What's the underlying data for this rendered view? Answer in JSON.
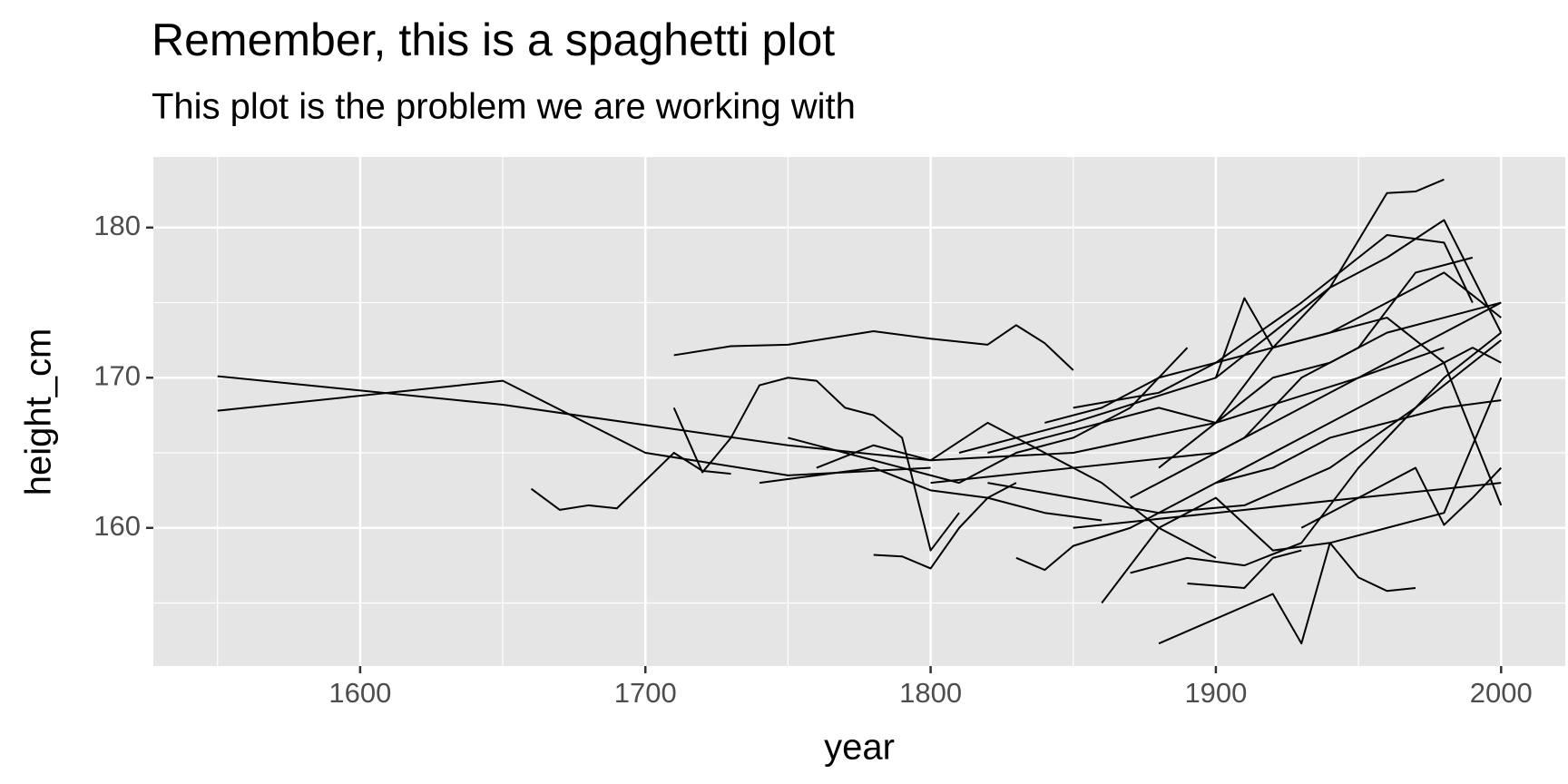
{
  "chart_data": {
    "type": "line",
    "title": "Remember, this is a spaghetti plot",
    "subtitle": "This plot is the problem we are working with",
    "x_label": "year",
    "y_label": "height_cm",
    "color": "#000000",
    "xlim": [
      1527.5,
      2022.5
    ],
    "ylim": [
      150.8,
      184.7
    ],
    "xticks": [
      1600,
      1700,
      1800,
      1900,
      2000
    ],
    "yticks": [
      160,
      170,
      180
    ],
    "x_minor_ticks": [
      1550,
      1650,
      1750,
      1850,
      1950
    ],
    "y_minor_ticks": [
      155,
      165,
      175
    ],
    "grid": true,
    "series": [
      {
        "x": [
          1550,
          1650,
          1750,
          1800,
          1850,
          1900,
          1950,
          1980
        ],
        "values": [
          170.1,
          168.2,
          165.5,
          164.5,
          165,
          167,
          170,
          172
        ]
      },
      {
        "x": [
          1550,
          1650,
          1700,
          1750,
          1800
        ],
        "values": [
          167.8,
          169.8,
          165,
          163.5,
          164
        ]
      },
      {
        "x": [
          1710,
          1730,
          1750,
          1780,
          1800,
          1820,
          1830,
          1840,
          1850
        ],
        "values": [
          171.5,
          172.1,
          172.2,
          173.1,
          172.6,
          172.2,
          173.5,
          172.3,
          170.5
        ]
      },
      {
        "x": [
          1660,
          1670,
          1680,
          1690,
          1710,
          1720,
          1730
        ],
        "values": [
          162.6,
          161.2,
          161.5,
          161.3,
          165,
          163.8,
          163.6
        ]
      },
      {
        "x": [
          1710,
          1720,
          1730,
          1740,
          1750,
          1760,
          1770,
          1780,
          1790,
          1800,
          1810
        ],
        "values": [
          168,
          163.7,
          166,
          169.5,
          170,
          169.8,
          168,
          167.5,
          166,
          158.5,
          161
        ]
      },
      {
        "x": [
          1880,
          1920,
          1930,
          1940
        ],
        "values": [
          152.3,
          155.6,
          152.3,
          159
        ]
      },
      {
        "x": [
          1940,
          1950,
          1960,
          1970
        ],
        "values": [
          159,
          156.7,
          155.8,
          156
        ]
      },
      {
        "x": [
          1810,
          1850,
          1900,
          1940,
          1960,
          1970,
          1980
        ],
        "values": [
          165,
          167,
          170,
          176,
          182.3,
          182.4,
          183.2
        ]
      },
      {
        "x": [
          1850,
          1880,
          1900,
          1930,
          1960,
          1980,
          1990
        ],
        "values": [
          168,
          169,
          171,
          175,
          179.5,
          179,
          175
        ]
      },
      {
        "x": [
          1800,
          1850,
          1900,
          1950,
          2000
        ],
        "values": [
          163,
          164,
          165,
          170,
          175
        ]
      },
      {
        "x": [
          1850,
          1900,
          1950,
          2000
        ],
        "values": [
          160,
          161,
          162,
          163
        ]
      },
      {
        "x": [
          1860,
          1880,
          1900,
          1920,
          1940,
          1960,
          1980,
          2000
        ],
        "values": [
          155,
          160,
          162,
          158.5,
          159,
          160,
          161,
          170
        ]
      },
      {
        "x": [
          1870,
          1890,
          1910,
          1930,
          1950,
          1980,
          2000
        ],
        "values": [
          157,
          158,
          157.5,
          159,
          164,
          170,
          173
        ]
      },
      {
        "x": [
          1780,
          1790,
          1800,
          1810,
          1820,
          1830
        ],
        "values": [
          158.2,
          158.1,
          157.3,
          160,
          162,
          163
        ]
      },
      {
        "x": [
          1890,
          1910,
          1920,
          1930
        ],
        "values": [
          156.3,
          156,
          158,
          158.5
        ]
      },
      {
        "x": [
          1880,
          1900,
          1920,
          1940,
          1960,
          1980,
          2000
        ],
        "values": [
          164,
          167,
          172,
          176,
          178,
          180.5,
          173
        ]
      },
      {
        "x": [
          1900,
          1910,
          1920,
          1940,
          1960,
          1980,
          2000
        ],
        "values": [
          170,
          175.3,
          172,
          173,
          174,
          171,
          161.5
        ]
      },
      {
        "x": [
          1830,
          1840,
          1850,
          1870,
          1890,
          1910,
          1930,
          1950,
          1970,
          1990,
          2000
        ],
        "values": [
          158,
          157.2,
          158.8,
          160,
          162,
          164,
          166,
          168,
          170,
          172,
          171
        ]
      },
      {
        "x": [
          1820,
          1840,
          1860,
          1880,
          1900,
          1920,
          1940,
          1960,
          1980,
          2000
        ],
        "values": [
          165,
          166,
          167,
          168,
          167,
          170,
          171,
          173,
          174,
          175
        ]
      },
      {
        "x": [
          1740,
          1760,
          1780,
          1800,
          1820,
          1840,
          1860
        ],
        "values": [
          163,
          163.5,
          164,
          162.5,
          162,
          161,
          160.5
        ]
      },
      {
        "x": [
          1750,
          1770,
          1790,
          1810,
          1830,
          1850,
          1870,
          1890
        ],
        "values": [
          166,
          165,
          164,
          163,
          165,
          166,
          168,
          172
        ]
      },
      {
        "x": [
          1820,
          1850,
          1880,
          1910,
          1940,
          1970,
          2000
        ],
        "values": [
          163,
          162,
          161,
          161.5,
          164,
          168,
          172.5
        ]
      },
      {
        "x": [
          1870,
          1890,
          1910,
          1930,
          1950,
          1970,
          1990
        ],
        "values": [
          162,
          164,
          166,
          170,
          172,
          177,
          178
        ]
      },
      {
        "x": [
          1900,
          1920,
          1940,
          1960,
          1980,
          2000
        ],
        "values": [
          163,
          164,
          166,
          167,
          168,
          168.5
        ]
      },
      {
        "x": [
          1840,
          1860,
          1880,
          1900,
          1920,
          1940,
          1960,
          1980,
          2000
        ],
        "values": [
          167,
          168,
          170,
          171,
          172,
          173,
          175,
          177,
          174
        ]
      },
      {
        "x": [
          1760,
          1780,
          1800,
          1820,
          1840,
          1860,
          1880,
          1900
        ],
        "values": [
          164,
          165.5,
          164.5,
          167,
          165,
          163,
          160,
          158
        ]
      },
      {
        "x": [
          1930,
          1950,
          1970,
          1980,
          1990,
          2000
        ],
        "values": [
          160,
          162,
          164,
          160.2,
          162,
          164
        ]
      }
    ]
  }
}
